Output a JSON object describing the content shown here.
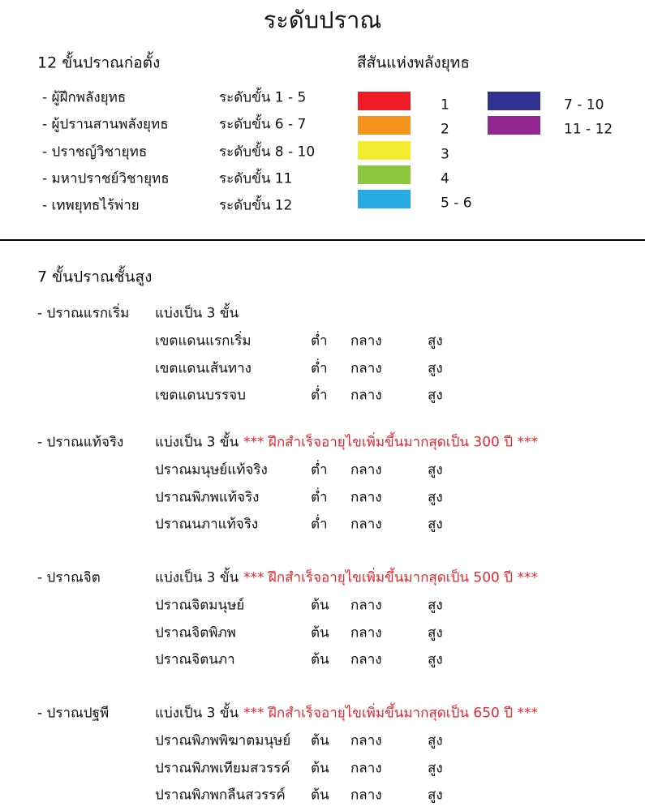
{
  "title": "ระดับปราณ",
  "founding": {
    "heading": "12 ขั้นปราณก่อตั้ง",
    "levels": [
      {
        "name": "- ผู้ฝึกพลังยุทธ",
        "range": "ระดับขั้น 1 - 5"
      },
      {
        "name": "- ผู้ปรานสานพลังยุทธ",
        "range": "ระดับขั้น 6 - 7"
      },
      {
        "name": "- ปราชญ์วิชายุทธ",
        "range": "ระดับขั้น 8 - 10"
      },
      {
        "name": "- มหาปราชย์วิชายุทธ",
        "range": "ระดับขั้น 11"
      },
      {
        "name": "- เทพยุทธไร้พ่าย",
        "range": "ระดับขั้น 12"
      }
    ]
  },
  "colors": {
    "heading": "สีสันแห่งพลังยุทธ",
    "swatches": [
      {
        "label": "1",
        "color": "#ee1c25"
      },
      {
        "label": "2",
        "color": "#f7941d"
      },
      {
        "label": "3",
        "color": "#f4ec31"
      },
      {
        "label": "4",
        "color": "#8dc63f"
      },
      {
        "label": "5 - 6",
        "color": "#27aae1"
      },
      {
        "label": "7 - 10",
        "color": "#2e3192"
      },
      {
        "label": "11 - 12",
        "color": "#92278f"
      }
    ]
  },
  "advanced": {
    "heading": "7 ขั้นปราณชั้นสูง",
    "groups": [
      {
        "name": "- ปราณแรกเริ่ม",
        "division": "แบ่งเป็น 3 ขั้น",
        "note": null,
        "realms": [
          {
            "name": "เขตแดนแรกเริ่ม",
            "stages": [
              "ต่ำ",
              "กลาง",
              "สูง"
            ]
          },
          {
            "name": "เขตแดนเส้นทาง",
            "stages": [
              "ต่ำ",
              "กลาง",
              "สูง"
            ]
          },
          {
            "name": "เขตแดนบรรจบ",
            "stages": [
              "ต่ำ",
              "กลาง",
              "สูง"
            ]
          }
        ]
      },
      {
        "name": "- ปราณแท้จริง",
        "division": "แบ่งเป็น 3 ขั้น",
        "note": "*** ฝึกสำเร็จอายุไขเพิ่มขึ้นมากสุดเป็น 300 ปี ***",
        "realms": [
          {
            "name": "ปราณมนุษย์แท้จริง",
            "stages": [
              "ต่ำ",
              "กลาง",
              "สูง"
            ]
          },
          {
            "name": "ปราณพิภพแท้จริง",
            "stages": [
              "ต่ำ",
              "กลาง",
              "สูง"
            ]
          },
          {
            "name": "ปราณนภาแท้จริง",
            "stages": [
              "ต่ำ",
              "กลาง",
              "สูง"
            ]
          }
        ]
      },
      {
        "name": "- ปราณจิต",
        "division": "แบ่งเป็น 3 ขั้น",
        "note": "*** ฝึกสำเร็จอายุไขเพิ่มขึ้นมากสุดเป็น 500 ปี ***",
        "realms": [
          {
            "name": "ปราณจิตมนุษย์",
            "stages": [
              "ต้น",
              "กลาง",
              "สูง"
            ]
          },
          {
            "name": "ปราณจิตพิภพ",
            "stages": [
              "ต้น",
              "กลาง",
              "สูง"
            ]
          },
          {
            "name": "ปราณจิตนภา",
            "stages": [
              "ต้น",
              "กลาง",
              "สูง"
            ]
          }
        ]
      },
      {
        "name": "- ปราณปฐพี",
        "division": "แบ่งเป็น 3 ขั้น",
        "note": "*** ฝึกสำเร็จอายุไขเพิ่มขึ้นมากสุดเป็น 650 ปี ***",
        "realms": [
          {
            "name": "ปราณพิภพพิฆาตมนุษย์",
            "stages": [
              "ต้น",
              "กลาง",
              "สูง"
            ]
          },
          {
            "name": "ปราณพิภพเทียมสวรรค์",
            "stages": [
              "ต้น",
              "กลาง",
              "สูง"
            ]
          },
          {
            "name": "ปราณพิภพกลืนสวรรค์",
            "stages": [
              "ต้น",
              "กลาง",
              "สูง"
            ]
          }
        ]
      }
    ]
  }
}
